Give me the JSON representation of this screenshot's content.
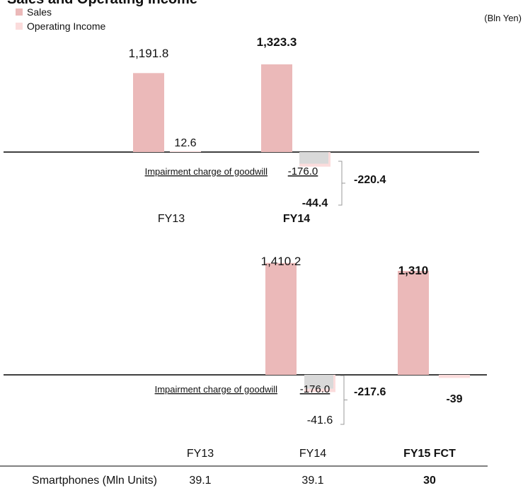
{
  "title": "Sales and Operating Income",
  "unit": "(Bln Yen)",
  "legend": [
    {
      "label": "Sales",
      "color": "#ebb9b9"
    },
    {
      "label": "Operating Income",
      "color": "#fbdcdc"
    }
  ],
  "colors": {
    "sales": "#ebb9b9",
    "income": "#fbdcdc",
    "impairment": "#d9d9d9",
    "axis": "#000000",
    "bracket": "#999999"
  },
  "chart_data": [
    {
      "type": "bar",
      "categories": [
        "FY13",
        "FY14"
      ],
      "category_bold": [
        false,
        true
      ],
      "series": [
        {
          "name": "Sales",
          "values": [
            1191.8,
            1323.3
          ],
          "labels": [
            "1,191.8",
            "1,323.3"
          ]
        },
        {
          "name": "Operating Income",
          "values": [
            12.6,
            -220.4
          ],
          "labels": [
            "12.6",
            "-44.4"
          ]
        }
      ],
      "impairment": {
        "label": "Impairment charge of goodwill",
        "value": -176.0,
        "text": "-176.0",
        "category": "FY14"
      },
      "total_label": "-220.4"
    },
    {
      "type": "bar",
      "categories": [
        "FY13",
        "FY14",
        "FY15 FCT"
      ],
      "category_bold": [
        false,
        false,
        true
      ],
      "series": [
        {
          "name": "Sales",
          "values": [
            null,
            1410.2,
            1310
          ],
          "labels": [
            "",
            "1,410.2",
            "1,310"
          ]
        },
        {
          "name": "Operating Income",
          "values": [
            null,
            -217.6,
            -39
          ],
          "labels": [
            "",
            "-41.6",
            "-39"
          ]
        }
      ],
      "impairment": {
        "label": "Impairment charge of goodwill",
        "value": -176.0,
        "text": "-176.0",
        "category": "FY14"
      },
      "total_label": "-217.6",
      "table": {
        "row_label": "Smartphones (Mln Units)",
        "values": [
          "39.1",
          "39.1",
          "30"
        ],
        "bold": [
          false,
          false,
          true
        ]
      }
    }
  ]
}
